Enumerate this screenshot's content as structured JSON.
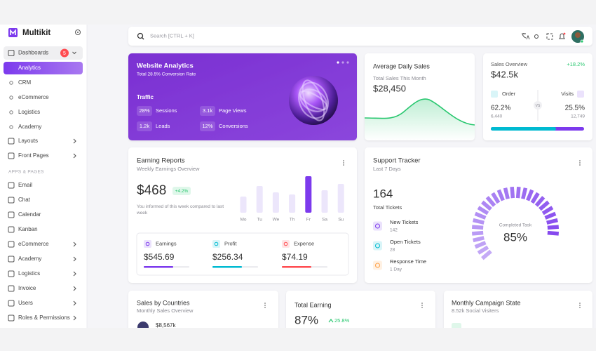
{
  "sidebar": {
    "brand": "Multikit",
    "menu": [
      {
        "label": "Dashboards",
        "badge": 5,
        "children": [
          "Analytics",
          "CRM",
          "eCommerce",
          "Logistics",
          "Academy"
        ]
      },
      {
        "label": "Layouts"
      },
      {
        "label": "Front Pages"
      }
    ],
    "section": "APPS & PAGES",
    "apps": [
      "Email",
      "Chat",
      "Calendar",
      "Kanban",
      "eCommerce",
      "Academy",
      "Logistics",
      "Invoice",
      "Users",
      "Roles & Permissions"
    ]
  },
  "search": {
    "placeholder": "Search [CTRL + K]"
  },
  "website_analytics": {
    "title": "Website Analytics",
    "subtitle": "Total 28.5% Conversion Rate",
    "section": "Traffic",
    "stats": [
      {
        "value": "28%",
        "label": "Sessions"
      },
      {
        "value": "3.1k",
        "label": "Page Views"
      },
      {
        "value": "1.2k",
        "label": "Leads"
      },
      {
        "value": "12%",
        "label": "Conversions"
      }
    ]
  },
  "average_daily_sales": {
    "title": "Average Daily Sales",
    "subtitle": "Total Sales This Month",
    "amount": "$28,450"
  },
  "sales_overview": {
    "title": "Sales Overview",
    "change": "+18.2%",
    "amount": "$42.5k",
    "order": {
      "label": "Order",
      "percent": "62.2%",
      "count": "6,440"
    },
    "visits": {
      "label": "Visits",
      "percent": "25.5%",
      "count": "12,749"
    },
    "versus": "VS"
  },
  "earning_reports": {
    "title": "Earning Reports",
    "subtitle": "Weekly Earnings Overview",
    "amount": "$468",
    "change": "+4.2%",
    "note": "You informed of this week compared to last week",
    "days": [
      "Mo",
      "Tu",
      "We",
      "Th",
      "Fr",
      "Sa",
      "Su"
    ],
    "summary": [
      {
        "label": "Earnings",
        "amount": "$545.69"
      },
      {
        "label": "Profit",
        "amount": "$256.34"
      },
      {
        "label": "Expense",
        "amount": "$74.19"
      }
    ]
  },
  "support_tracker": {
    "title": "Support Tracker",
    "subtitle": "Last 7 Days",
    "total": 164,
    "total_label": "Total Tickets",
    "items": [
      {
        "label": "New Tickets",
        "value": "142"
      },
      {
        "label": "Open Tickets",
        "value": "28"
      },
      {
        "label": "Response Time",
        "value": "1 Day"
      }
    ],
    "gauge_label": "Completed Task",
    "completed": {
      "value": 85,
      "label": "85%"
    }
  },
  "sales_by_countries": {
    "title": "Sales by Countries",
    "subtitle": "Monthly Sales Overview",
    "first_amount": "$8,567k"
  },
  "total_earning": {
    "title": "Total Earning",
    "percent": "87%",
    "change": "25.8%"
  },
  "monthly_campaign": {
    "title": "Monthly Campaign State",
    "subtitle": "8.52k Social Visiters"
  }
}
